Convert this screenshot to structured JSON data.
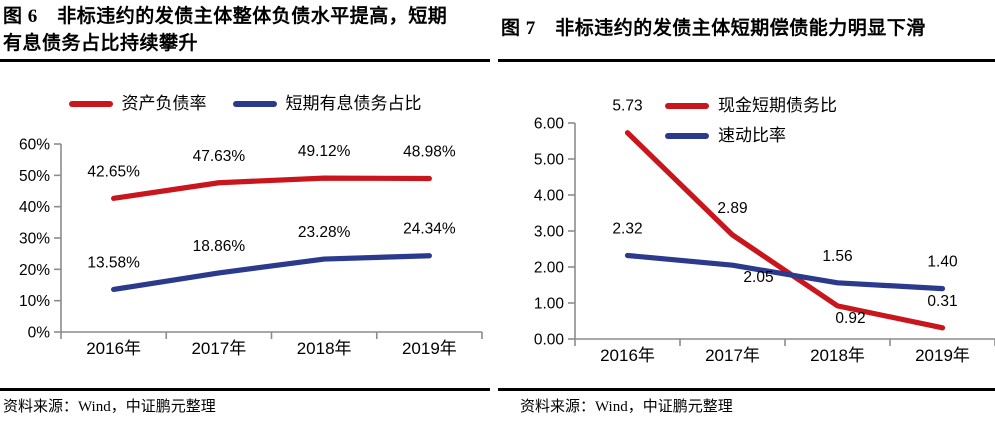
{
  "chart_data": [
    {
      "id": "figure-6",
      "type": "line",
      "title": "图 6　非标违约的发债主体整体负债水平提高，短期有息债务占比持续攀升",
      "source": "资料来源：Wind，中证鹏元整理",
      "categories": [
        "2016年",
        "2017年",
        "2018年",
        "2019年"
      ],
      "series": [
        {
          "name": "资产负债率",
          "color": "#c9161d",
          "values": [
            42.65,
            47.63,
            49.12,
            48.98
          ],
          "point_labels": [
            "42.65%",
            "47.63%",
            "49.12%",
            "48.98%"
          ]
        },
        {
          "name": "短期有息债务占比",
          "color": "#2b3a8c",
          "values": [
            13.58,
            18.86,
            23.28,
            24.34
          ],
          "point_labels": [
            "13.58%",
            "18.86%",
            "23.28%",
            "24.34%"
          ]
        }
      ],
      "y_axis": {
        "min": 0,
        "max": 60,
        "step": 10,
        "tick_labels": [
          "0%",
          "10%",
          "20%",
          "30%",
          "40%",
          "50%",
          "60%"
        ]
      },
      "legend_position": "top-center-horizontal",
      "grid": false
    },
    {
      "id": "figure-7",
      "type": "line",
      "title": "图 7　非标违约的发债主体短期偿债能力明显下滑",
      "source": "资料来源：Wind，中证鹏元整理",
      "categories": [
        "2016年",
        "2017年",
        "2018年",
        "2019年"
      ],
      "series": [
        {
          "name": "现金短期债务比",
          "color": "#c9161d",
          "values": [
            5.73,
            2.89,
            0.92,
            0.31
          ],
          "point_labels": [
            "5.73",
            "2.89",
            "0.92",
            "0.31"
          ],
          "label_offsets": [
            [
              0,
              -22
            ],
            [
              0,
              -22
            ],
            [
              13,
              17
            ],
            [
              0,
              -22
            ]
          ]
        },
        {
          "name": "速动比率",
          "color": "#2b3a8c",
          "values": [
            2.32,
            2.05,
            1.56,
            1.4
          ],
          "point_labels": [
            "2.32",
            "2.05",
            "1.56",
            "1.40"
          ],
          "label_offsets": [
            [
              0,
              -22
            ],
            [
              26,
              17
            ],
            [
              0,
              -22
            ],
            [
              0,
              -22
            ]
          ]
        }
      ],
      "y_axis": {
        "min": 0,
        "max": 6,
        "step": 1,
        "tick_labels": [
          "0.00",
          "1.00",
          "2.00",
          "3.00",
          "4.00",
          "5.00",
          "6.00"
        ]
      },
      "legend_position": "inside-left-vertical",
      "grid": false
    }
  ]
}
